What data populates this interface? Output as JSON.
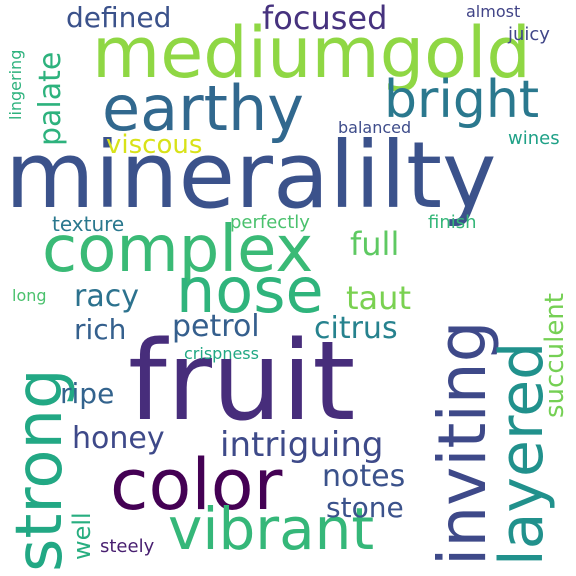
{
  "background_color": "#ffffff",
  "words": [
    {
      "text": "mineralilty",
      "color": "#3b528b"
    },
    {
      "text": "fruit",
      "color": "#472d7b"
    },
    {
      "text": "mediumgold",
      "color": "#8fd744"
    },
    {
      "text": "earthy",
      "color": "#31688e"
    },
    {
      "text": "complex",
      "color": "#3aba76"
    },
    {
      "text": "nose",
      "color": "#2fb47c"
    },
    {
      "text": "color",
      "color": "#440154"
    },
    {
      "text": "vibrant",
      "color": "#35b779"
    },
    {
      "text": "bright",
      "color": "#2a788e"
    },
    {
      "text": "strong",
      "color": "#22a884"
    },
    {
      "text": "inviting",
      "color": "#3e4989"
    },
    {
      "text": "layered",
      "color": "#21918c"
    },
    {
      "text": "focused",
      "color": "#46327e"
    },
    {
      "text": "defined",
      "color": "#3b528b"
    },
    {
      "text": "palate",
      "color": "#2db27d"
    },
    {
      "text": "viscous",
      "color": "#d8e219"
    },
    {
      "text": "intriguing",
      "color": "#3e4a89"
    },
    {
      "text": "petrol",
      "color": "#355f8d"
    },
    {
      "text": "citrus",
      "color": "#26828e"
    },
    {
      "text": "notes",
      "color": "#3b528b"
    },
    {
      "text": "stone",
      "color": "#3b528b"
    },
    {
      "text": "honey",
      "color": "#3e4989"
    },
    {
      "text": "racy",
      "color": "#2c728e"
    },
    {
      "text": "rich",
      "color": "#35608d"
    },
    {
      "text": "ripe",
      "color": "#33638d"
    },
    {
      "text": "full",
      "color": "#5ec962"
    },
    {
      "text": "taut",
      "color": "#7ad151"
    },
    {
      "text": "succulent",
      "color": "#75d054"
    },
    {
      "text": "texture",
      "color": "#2a788e"
    },
    {
      "text": "perfectly",
      "color": "#4ac16d"
    },
    {
      "text": "finish",
      "color": "#35b779"
    },
    {
      "text": "crispness",
      "color": "#22a884"
    },
    {
      "text": "well",
      "color": "#28ae80"
    },
    {
      "text": "steely",
      "color": "#481f70"
    },
    {
      "text": "balanced",
      "color": "#3e4c8a"
    },
    {
      "text": "wines",
      "color": "#1fa187"
    },
    {
      "text": "juicy",
      "color": "#404688"
    },
    {
      "text": "almost",
      "color": "#414487"
    },
    {
      "text": "lingering",
      "color": "#2db27d"
    },
    {
      "text": "long",
      "color": "#4ac16d"
    }
  ]
}
